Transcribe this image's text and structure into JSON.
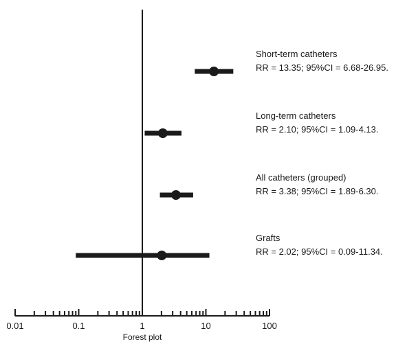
{
  "chart_data": {
    "type": "forest",
    "xlabel": "Forest plot",
    "x_scale": "log",
    "xlim": [
      0.01,
      100
    ],
    "reference_line": 1,
    "ticks": [
      "0.01",
      "0.1",
      "1",
      "10",
      "100"
    ],
    "tick_values": [
      0.01,
      0.1,
      1,
      10,
      100
    ],
    "grid": false,
    "series_color": "#1a1a1a",
    "rows": [
      {
        "name": "Short-term catheters",
        "stat": "RR = 13.35; 95%CI = 6.68-26.95.",
        "rr": 13.35,
        "ci_low": 6.68,
        "ci_high": 26.95
      },
      {
        "name": "Long-term catheters",
        "stat": "RR = 2.10; 95%CI = 1.09-4.13.",
        "rr": 2.1,
        "ci_low": 1.09,
        "ci_high": 4.13
      },
      {
        "name": "All catheters (grouped)",
        "stat": "RR = 3.38; 95%CI = 1.89-6.30.",
        "rr": 3.38,
        "ci_low": 1.89,
        "ci_high": 6.3
      },
      {
        "name": "Grafts",
        "stat": "RR = 2.02; 95%CI = 0.09-11.34.",
        "rr": 2.02,
        "ci_low": 0.09,
        "ci_high": 11.34
      }
    ]
  }
}
